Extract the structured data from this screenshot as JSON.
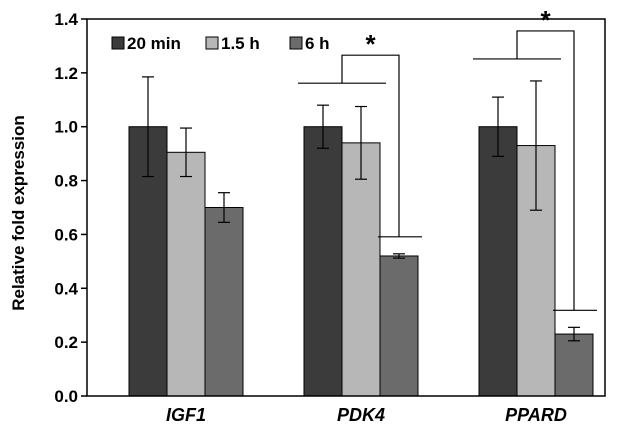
{
  "chart_data": {
    "type": "bar",
    "ylabel": "Relative fold expression",
    "ylim": [
      0,
      1.4
    ],
    "yticks": [
      "0.0",
      "0.2",
      "0.4",
      "0.6",
      "0.8",
      "1.0",
      "1.2",
      "1.4"
    ],
    "categories": [
      "IGF1",
      "PDK4",
      "PPARD"
    ],
    "series": [
      {
        "name": "20 min",
        "color": "#3b3b3b",
        "values": [
          1.0,
          1.0,
          1.0
        ],
        "errors": [
          0.185,
          0.08,
          0.11
        ]
      },
      {
        "name": "1.5 h",
        "color": "#b7b7b7",
        "values": [
          0.905,
          0.94,
          0.93
        ],
        "errors": [
          0.09,
          0.135,
          0.24
        ]
      },
      {
        "name": "6 h",
        "color": "#6b6b6b",
        "values": [
          0.7,
          0.52,
          0.23
        ],
        "errors": [
          0.055,
          0.008,
          0.025
        ]
      }
    ],
    "legend_position": "top-left",
    "grid": false,
    "significance_marker": "*",
    "significance_groups": [
      "PDK4",
      "PPARD"
    ]
  }
}
